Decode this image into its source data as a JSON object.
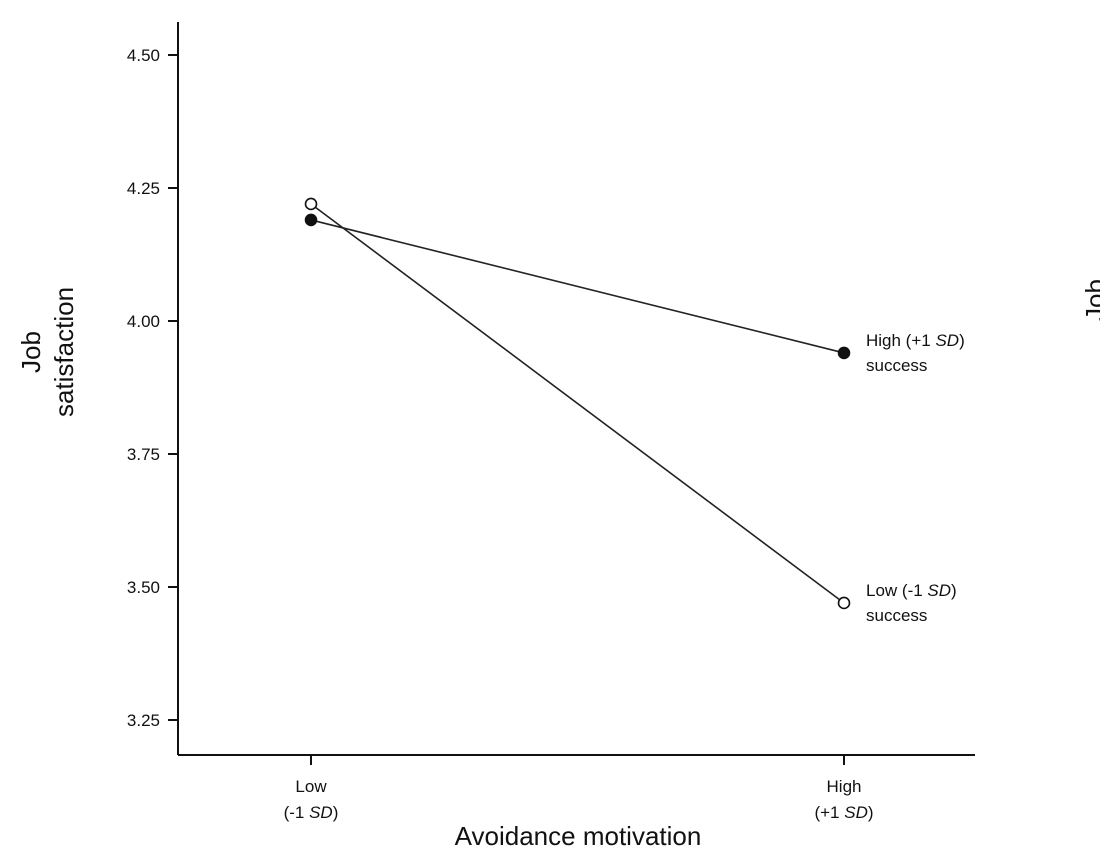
{
  "chart_data": {
    "type": "line",
    "xlabel": "Avoidance motivation",
    "ylabel_lines": [
      "Job",
      "satisfaction"
    ],
    "categories": [
      {
        "line1": "Low",
        "line2_pre": "(-1 ",
        "line2_em": "SD",
        "line2_post": ")"
      },
      {
        "line1": "High",
        "line2_pre": "(+1 ",
        "line2_em": "SD",
        "line2_post": ")"
      }
    ],
    "yticks": [
      "4.50",
      "4.25",
      "4.00",
      "3.75",
      "3.50",
      "3.25"
    ],
    "ylim": [
      3.2,
      4.52
    ],
    "series": [
      {
        "name_line1_pre": "High (+1 ",
        "name_line1_em": "SD",
        "name_line1_post": ")",
        "name_line2": "success",
        "marker": "filled",
        "values": [
          4.19,
          3.94
        ]
      },
      {
        "name_line1_pre": "Low (-1 ",
        "name_line1_em": "SD",
        "name_line1_post": ")",
        "name_line2": "success",
        "marker": "open",
        "values": [
          4.22,
          3.47
        ]
      }
    ],
    "clipped_neighbor_label": "Job"
  }
}
